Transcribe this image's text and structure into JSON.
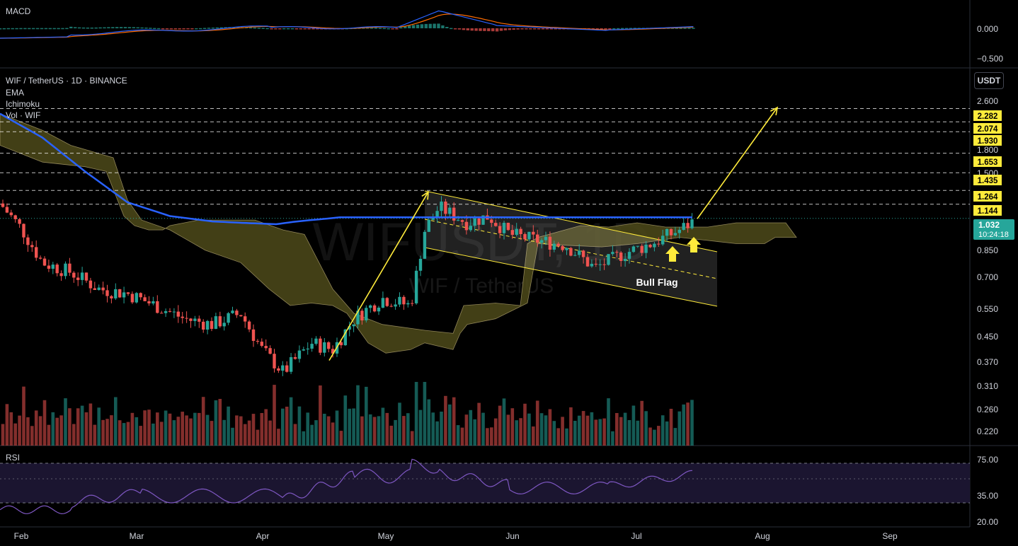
{
  "panes": {
    "macd": {
      "label": "MACD",
      "ticks": [
        "0.000",
        "−0.500"
      ]
    },
    "main": {
      "title": "WIF / TetherUS · 1D · BINANCE",
      "indicators": [
        "EMA",
        "Ichimoku",
        "Vol · WIF"
      ],
      "watermark_symbol": "WIFUSDT, 1D",
      "watermark_name": "WIF / TetherUS",
      "currency_button": "USDT",
      "price_ticks": [
        "2.600",
        "1.800",
        "1.500",
        "0.850",
        "0.700",
        "0.550",
        "0.450",
        "0.370",
        "0.310",
        "0.260",
        "0.220"
      ],
      "levels": [
        "2.282",
        "2.074",
        "1.930",
        "1.653",
        "1.435",
        "1.264",
        "1.144"
      ],
      "last_price": "1.032",
      "countdown": "10:24:18",
      "pattern_label": "Bull Flag"
    },
    "rsi": {
      "label": "RSI",
      "ticks": [
        "75.00",
        "35.00",
        "20.00"
      ]
    }
  },
  "time_axis": [
    "Feb",
    "Mar",
    "Apr",
    "May",
    "Jun",
    "Jul",
    "Aug",
    "Sep"
  ],
  "colors": {
    "background": "#000000",
    "up": "#26a69a",
    "down": "#ef5350",
    "ema": "#2962ff",
    "annotation": "#ffeb3b",
    "cloud": "#4d4a1a",
    "rsi_line": "#7e57c2",
    "macd_line": "#2962ff",
    "signal_line": "#ff6d00",
    "last_price_bg": "#26a69a"
  },
  "chart_data": {
    "type": "candlestick",
    "symbol": "WIF / TetherUS",
    "interval": "1D",
    "exchange": "BINANCE",
    "scale": "log",
    "price_range": [
      0.2,
      3.0
    ],
    "horizontal_levels": [
      2.282,
      2.074,
      1.93,
      1.653,
      1.435,
      1.264,
      1.144
    ],
    "last_price": 1.032,
    "ema_approx": [
      [
        0,
        2.2
      ],
      [
        60,
        1.85
      ],
      [
        120,
        1.45
      ],
      [
        180,
        1.16
      ],
      [
        240,
        1.05
      ],
      [
        300,
        1.01
      ],
      [
        340,
        1.0
      ],
      [
        390,
        0.99
      ],
      [
        420,
        1.01
      ],
      [
        480,
        1.04
      ]
    ],
    "close_path_approx": [
      [
        0,
        1.15
      ],
      [
        30,
        0.96
      ],
      [
        60,
        0.75
      ],
      [
        100,
        0.7
      ],
      [
        140,
        0.62
      ],
      [
        180,
        0.6
      ],
      [
        220,
        0.55
      ],
      [
        260,
        0.5
      ],
      [
        300,
        0.48
      ],
      [
        340,
        0.52
      ],
      [
        370,
        0.4
      ],
      [
        400,
        0.34
      ],
      [
        440,
        0.42
      ],
      [
        470,
        0.4
      ],
      [
        500,
        0.5
      ],
      [
        540,
        0.58
      ],
      [
        580,
        0.55
      ],
      [
        600,
        0.95
      ],
      [
        620,
        1.12
      ],
      [
        660,
        1.0
      ],
      [
        690,
        1.05
      ],
      [
        720,
        0.92
      ],
      [
        760,
        0.88
      ],
      [
        800,
        0.85
      ],
      [
        840,
        0.72
      ],
      [
        880,
        0.8
      ],
      [
        920,
        0.86
      ],
      [
        960,
        0.95
      ],
      [
        985,
        1.03
      ]
    ],
    "annotations": [
      {
        "type": "arrow",
        "from": [
          465,
          0.37
        ],
        "to": [
          605,
          1.25
        ]
      },
      {
        "type": "channel",
        "label": "Bull Flag"
      },
      {
        "type": "arrow",
        "from": [
          985,
          1.03
        ],
        "to": [
          1098,
          2.3
        ]
      }
    ]
  }
}
